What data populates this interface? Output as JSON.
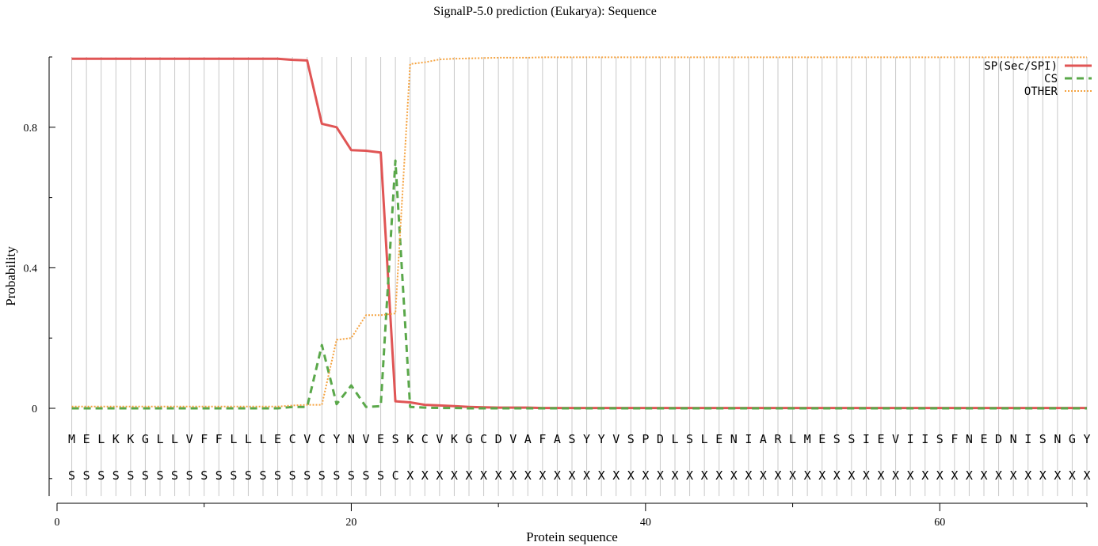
{
  "chart_data": {
    "type": "line",
    "title": "SignalP-5.0 prediction (Eukarya):  Sequence",
    "xlabel": "Protein sequence",
    "ylabel": "Probability",
    "xlim": [
      0,
      70
    ],
    "ylim": [
      -0.25,
      1.0
    ],
    "x_ticks": [
      0,
      20,
      40,
      60
    ],
    "y_ticks": [
      0,
      0.4,
      0.8
    ],
    "x_tick_labels": [
      "0",
      "20",
      "40",
      "60"
    ],
    "y_tick_labels": [
      "0",
      "0.4",
      "0.8"
    ],
    "grid": "vertical lines at each residue",
    "legend_position": "top-right",
    "sequence": [
      "M",
      "E",
      "L",
      "K",
      "K",
      "G",
      "L",
      "L",
      "V",
      "F",
      "F",
      "L",
      "L",
      "L",
      "E",
      "C",
      "V",
      "C",
      "Y",
      "N",
      "V",
      "E",
      "S",
      "K",
      "C",
      "V",
      "K",
      "G",
      "C",
      "D",
      "V",
      "A",
      "F",
      "A",
      "S",
      "Y",
      "Y",
      "V",
      "S",
      "P",
      "D",
      "L",
      "S",
      "L",
      "E",
      "N",
      "I",
      "A",
      "R",
      "L",
      "M",
      "E",
      "S",
      "S",
      "I",
      "E",
      "V",
      "I",
      "I",
      "S",
      "F",
      "N",
      "E",
      "D",
      "N",
      "I",
      "S",
      "N",
      "G",
      "Y"
    ],
    "annotation": [
      "S",
      "S",
      "S",
      "S",
      "S",
      "S",
      "S",
      "S",
      "S",
      "S",
      "S",
      "S",
      "S",
      "S",
      "S",
      "S",
      "S",
      "S",
      "S",
      "S",
      "S",
      "S",
      "C",
      "X",
      "X",
      "X",
      "X",
      "X",
      "X",
      "X",
      "X",
      "X",
      "X",
      "X",
      "X",
      "X",
      "X",
      "X",
      "X",
      "X",
      "X",
      "X",
      "X",
      "X",
      "X",
      "X",
      "X",
      "X",
      "X",
      "X",
      "X",
      "X",
      "X",
      "X",
      "X",
      "X",
      "X",
      "X",
      "X",
      "X",
      "X",
      "X",
      "X",
      "X",
      "X",
      "X",
      "X",
      "X",
      "X",
      "X"
    ],
    "series": [
      {
        "name": "SP(Sec/SPI)",
        "color": "#e05555",
        "style": "solid",
        "x": [
          1,
          2,
          3,
          4,
          5,
          6,
          7,
          8,
          9,
          10,
          11,
          12,
          13,
          14,
          15,
          16,
          17,
          18,
          19,
          20,
          21,
          22,
          23,
          24,
          25,
          26,
          27,
          28,
          29,
          30,
          31,
          32,
          33,
          34,
          35,
          36,
          37,
          38,
          39,
          40,
          41,
          42,
          43,
          44,
          45,
          46,
          47,
          48,
          49,
          50,
          51,
          52,
          53,
          54,
          55,
          56,
          57,
          58,
          59,
          60,
          61,
          62,
          63,
          64,
          65,
          66,
          67,
          68,
          69,
          70
        ],
        "values": [
          0.995,
          0.995,
          0.995,
          0.995,
          0.995,
          0.995,
          0.995,
          0.995,
          0.995,
          0.995,
          0.995,
          0.995,
          0.995,
          0.995,
          0.995,
          0.992,
          0.99,
          0.81,
          0.8,
          0.735,
          0.733,
          0.728,
          0.02,
          0.017,
          0.01,
          0.008,
          0.006,
          0.004,
          0.003,
          0.002,
          0.002,
          0.002,
          0.001,
          0.001,
          0.001,
          0.001,
          0.001,
          0.001,
          0.001,
          0.001,
          0.001,
          0.001,
          0.001,
          0.001,
          0.001,
          0.001,
          0.001,
          0.001,
          0.001,
          0.001,
          0.001,
          0.001,
          0.001,
          0.001,
          0.001,
          0.001,
          0.001,
          0.001,
          0.001,
          0.001,
          0.001,
          0.001,
          0.001,
          0.001,
          0.001,
          0.001,
          0.001,
          0.001,
          0.001,
          0.001
        ]
      },
      {
        "name": "CS",
        "color": "#5aa84a",
        "style": "dashed",
        "x": [
          1,
          2,
          3,
          4,
          5,
          6,
          7,
          8,
          9,
          10,
          11,
          12,
          13,
          14,
          15,
          16,
          17,
          18,
          19,
          20,
          21,
          22,
          23,
          24,
          25,
          26,
          27,
          28,
          29,
          30,
          31,
          32,
          33,
          34,
          35,
          36,
          37,
          38,
          39,
          40,
          41,
          42,
          43,
          44,
          45,
          46,
          47,
          48,
          49,
          50,
          51,
          52,
          53,
          54,
          55,
          56,
          57,
          58,
          59,
          60,
          61,
          62,
          63,
          64,
          65,
          66,
          67,
          68,
          69,
          70
        ],
        "values": [
          0.0,
          0.0,
          0.0,
          0.0,
          0.0,
          0.0,
          0.0,
          0.0,
          0.0,
          0.0,
          0.0,
          0.0,
          0.0,
          0.0,
          0.0,
          0.004,
          0.004,
          0.18,
          0.012,
          0.065,
          0.004,
          0.006,
          0.705,
          0.004,
          0.002,
          0.001,
          0.001,
          0.0,
          0.0,
          0.0,
          0.0,
          0.0,
          0.0,
          0.0,
          0.0,
          0.0,
          0.0,
          0.0,
          0.0,
          0.0,
          0.0,
          0.0,
          0.0,
          0.0,
          0.0,
          0.0,
          0.0,
          0.0,
          0.0,
          0.0,
          0.0,
          0.0,
          0.0,
          0.0,
          0.0,
          0.0,
          0.0,
          0.0,
          0.0,
          0.0,
          0.0,
          0.0,
          0.0,
          0.0,
          0.0,
          0.0,
          0.0,
          0.0,
          0.0,
          0.0
        ]
      },
      {
        "name": "OTHER",
        "color": "#f5a340",
        "style": "dotted",
        "x": [
          1,
          2,
          3,
          4,
          5,
          6,
          7,
          8,
          9,
          10,
          11,
          12,
          13,
          14,
          15,
          16,
          17,
          18,
          19,
          20,
          21,
          22,
          23,
          24,
          25,
          26,
          27,
          28,
          29,
          30,
          31,
          32,
          33,
          34,
          35,
          36,
          37,
          38,
          39,
          40,
          41,
          42,
          43,
          44,
          45,
          46,
          47,
          48,
          49,
          50,
          51,
          52,
          53,
          54,
          55,
          56,
          57,
          58,
          59,
          60,
          61,
          62,
          63,
          64,
          65,
          66,
          67,
          68,
          69,
          70
        ],
        "values": [
          0.005,
          0.005,
          0.005,
          0.005,
          0.005,
          0.005,
          0.005,
          0.005,
          0.005,
          0.005,
          0.005,
          0.005,
          0.005,
          0.005,
          0.005,
          0.008,
          0.01,
          0.01,
          0.195,
          0.2,
          0.265,
          0.265,
          0.27,
          0.98,
          0.985,
          0.993,
          0.995,
          0.996,
          0.997,
          0.998,
          0.998,
          0.998,
          0.999,
          0.999,
          0.999,
          0.999,
          0.999,
          0.999,
          0.999,
          0.999,
          0.999,
          0.999,
          0.999,
          0.999,
          0.999,
          0.999,
          0.999,
          0.999,
          0.999,
          0.999,
          0.999,
          0.999,
          0.999,
          0.999,
          0.999,
          0.999,
          0.999,
          0.999,
          0.999,
          0.999,
          0.999,
          0.999,
          0.999,
          0.999,
          0.999,
          0.999,
          0.999,
          0.999,
          0.999,
          0.999
        ]
      }
    ]
  }
}
